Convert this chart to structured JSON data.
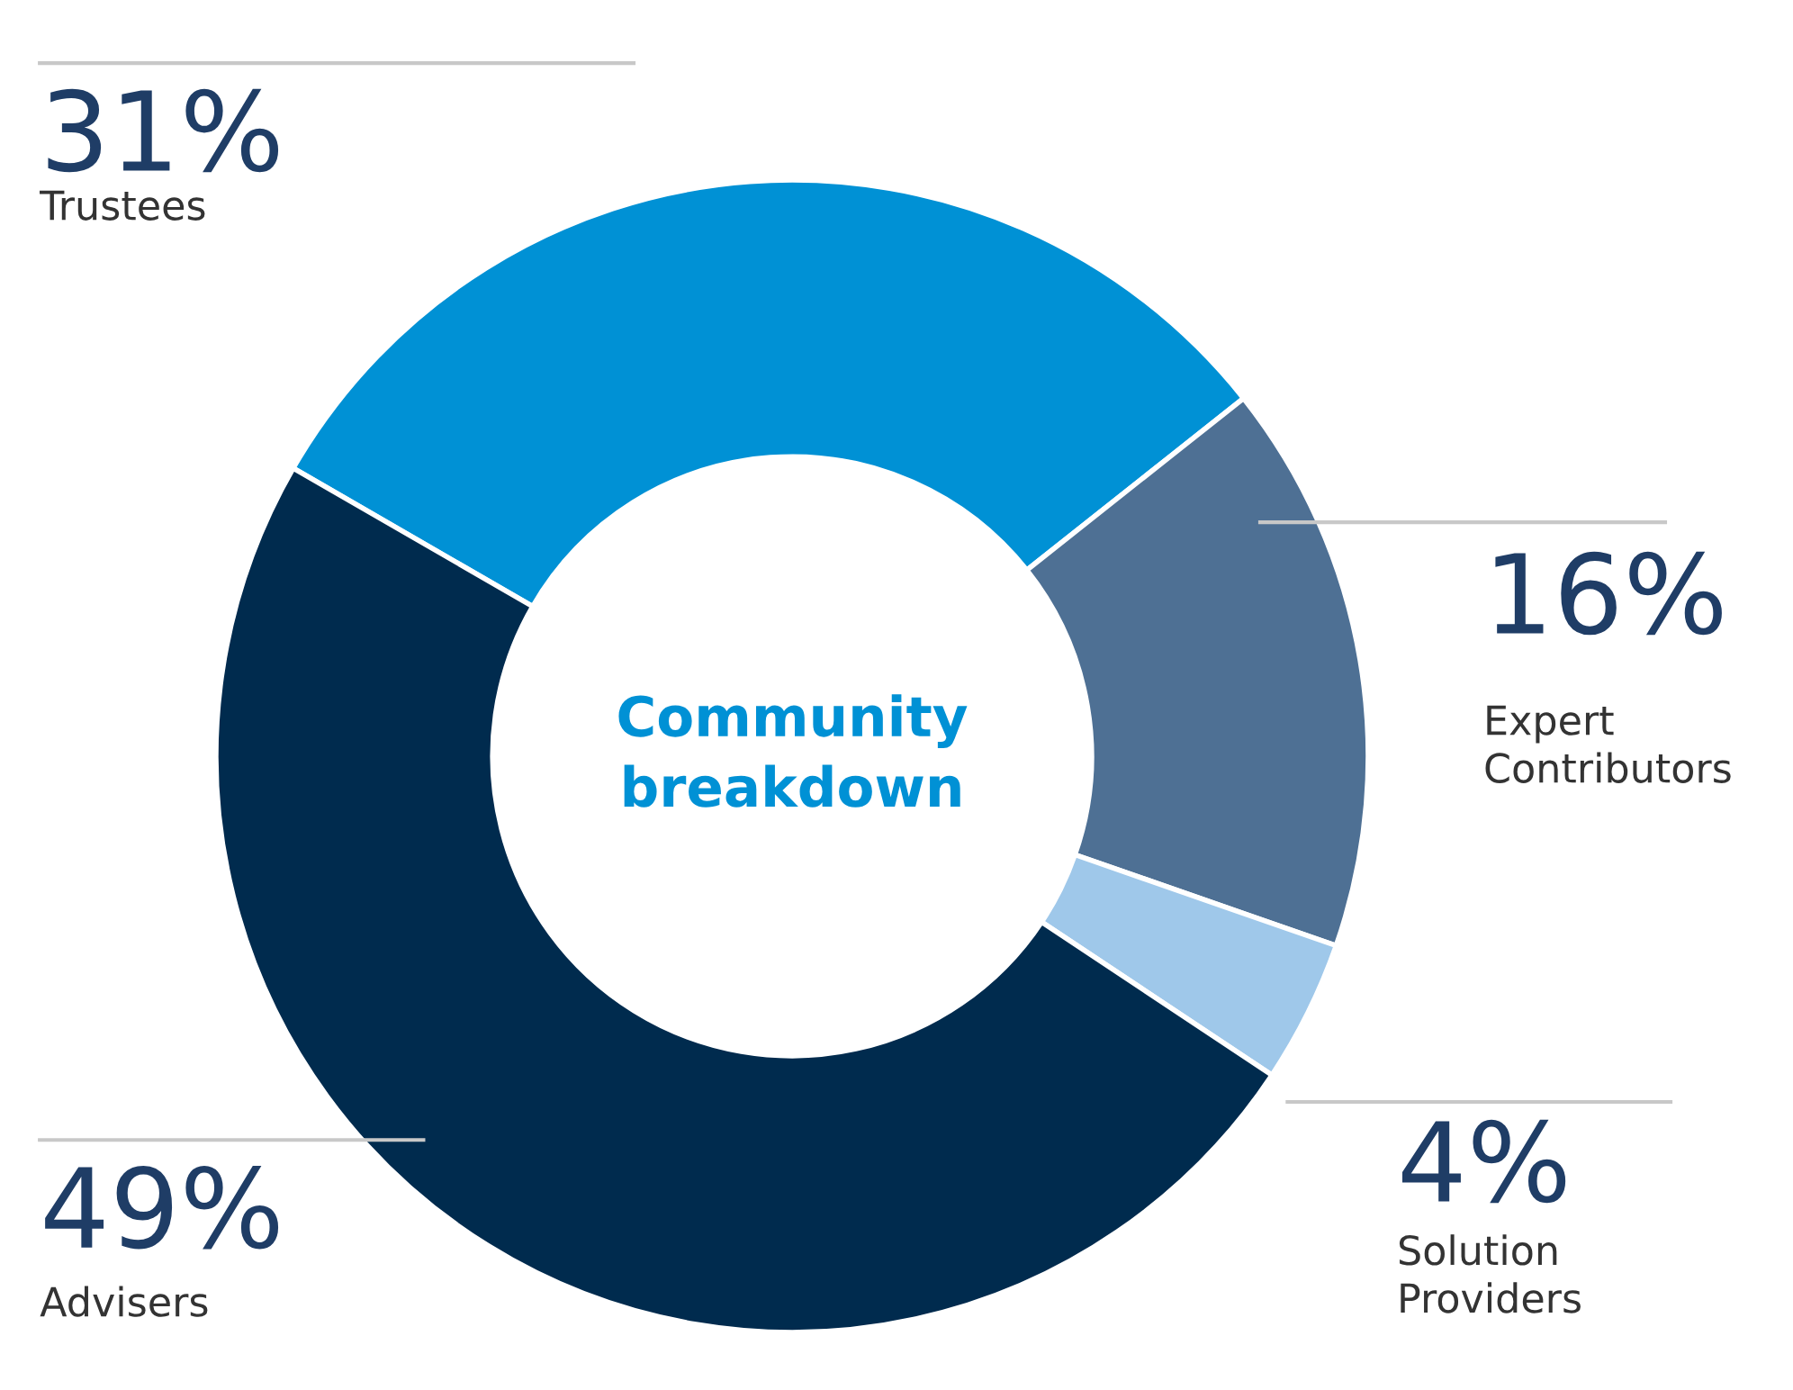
{
  "chart_data": {
    "type": "donut",
    "title": "Community breakdown",
    "categories": [
      "Trustees",
      "Expert Contributors",
      "Solution Providers",
      "Advisers"
    ],
    "values": [
      31,
      16,
      4,
      49
    ],
    "value_labels": [
      "31%",
      "16%",
      "4%",
      "49%"
    ],
    "colors": [
      "#0091d5",
      "#4e7094",
      "#9fc8ea",
      "#002b4e"
    ]
  }
}
